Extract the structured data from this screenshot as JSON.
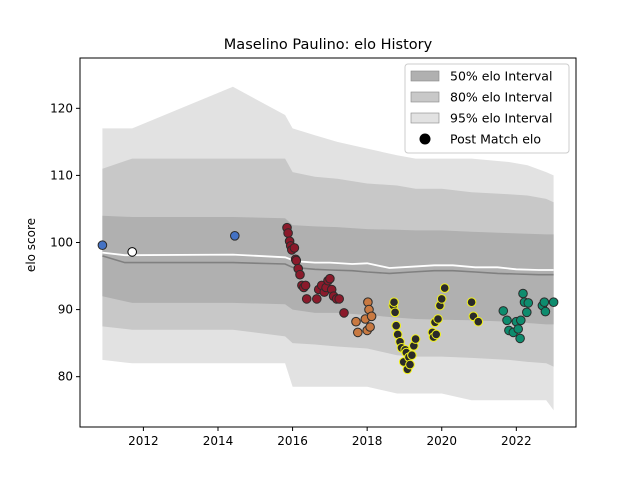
{
  "chart_data": {
    "type": "scatter",
    "title": "Maselino Paulino: elo History",
    "xlabel": "",
    "ylabel": "elo score",
    "xlim": [
      2010.3,
      2023.6
    ],
    "ylim": [
      72.5,
      127.5
    ],
    "xticks": [
      2012,
      2014,
      2016,
      2018,
      2020,
      2022
    ],
    "yticks": [
      80,
      90,
      100,
      110,
      120
    ],
    "grid": false,
    "legend_position": "top-right",
    "legend": [
      {
        "label": "50% elo Interval",
        "kind": "band",
        "color": "#b0b0b0"
      },
      {
        "label": "80% elo Interval",
        "kind": "band",
        "color": "#c8c8c8"
      },
      {
        "label": "95% elo Interval",
        "kind": "band",
        "color": "#e2e2e2"
      },
      {
        "label": "Post Match elo",
        "kind": "marker",
        "color": "#000000"
      }
    ],
    "bands": {
      "x": [
        2010.9,
        2011.7,
        2014.4,
        2015.8,
        2016.0,
        2016.6,
        2017.2,
        2018.0,
        2018.8,
        2019.3,
        2020.0,
        2020.8,
        2021.8,
        2022.3,
        2022.8,
        2023.0
      ],
      "p95_low": [
        82.5,
        82,
        82,
        82,
        78.5,
        78.5,
        78.5,
        78.5,
        77.5,
        77.5,
        77.5,
        76.5,
        76.5,
        76.5,
        76.5,
        75
      ],
      "p95_high": [
        117,
        117,
        123.2,
        119,
        117,
        116,
        115,
        114,
        113,
        112.5,
        112.5,
        112.5,
        112,
        111.5,
        110.5,
        110
      ],
      "p80_low": [
        87.5,
        87,
        87,
        86,
        85,
        84.8,
        84.5,
        84.2,
        83.2,
        83,
        83,
        82.8,
        82.5,
        82.2,
        82,
        81.5
      ],
      "p80_high": [
        111,
        112.5,
        112.5,
        112.5,
        110.5,
        109.8,
        109.5,
        108.8,
        108.5,
        108,
        108,
        107.5,
        107.2,
        107,
        106.5,
        106
      ],
      "p50_low": [
        92,
        91,
        91,
        90.8,
        90,
        89.5,
        89.5,
        89.2,
        88.8,
        88.6,
        88.5,
        88.4,
        88.2,
        88,
        87.8,
        87.8
      ],
      "p50_high": [
        104,
        103.8,
        103.8,
        103.6,
        102.6,
        102.4,
        102.3,
        102,
        101.9,
        101.8,
        101.8,
        101.6,
        101.4,
        101.3,
        101.2,
        101.2
      ]
    },
    "mean_line": {
      "x": [
        2010.9,
        2011.5,
        2014.4,
        2015.8,
        2016.1,
        2016.6,
        2017.0,
        2017.6,
        2018.0,
        2018.6,
        2019.2,
        2019.8,
        2020.3,
        2020.9,
        2021.5,
        2022.0,
        2022.6,
        2023.0
      ],
      "y": [
        98.5,
        98.1,
        98.2,
        97.8,
        97.2,
        97,
        97,
        96.8,
        96.9,
        96.2,
        96.4,
        96.6,
        96.6,
        96.3,
        96.3,
        96.0,
        95.9,
        95.9
      ]
    },
    "median_line": {
      "x": [
        2010.9,
        2011.5,
        2014.4,
        2015.8,
        2016.0,
        2016.6,
        2017.0,
        2017.6,
        2018.0,
        2018.6,
        2019.2,
        2019.8,
        2020.3,
        2020.9,
        2021.5,
        2022.0,
        2022.6,
        2023.0
      ],
      "y": [
        98,
        97,
        97,
        96.8,
        96.3,
        96,
        95.9,
        95.8,
        95.6,
        95.4,
        95.6,
        95.8,
        95.8,
        95.6,
        95.4,
        95.3,
        95.2,
        95.2
      ]
    },
    "series": [
      {
        "color": "#4472c4",
        "edge": "#2b2b2b",
        "points": [
          [
            2010.9,
            99.6
          ],
          [
            2014.45,
            101.0
          ]
        ]
      },
      {
        "color": "#ffffff",
        "edge": "#000000",
        "points": [
          [
            2011.7,
            98.6
          ]
        ]
      },
      {
        "color": "#8b1a2b",
        "edge": "#2b2b2b",
        "points": [
          [
            2015.85,
            102.2
          ],
          [
            2015.88,
            101.4
          ],
          [
            2015.92,
            100.2
          ],
          [
            2015.95,
            99.5
          ],
          [
            2015.98,
            98.9
          ],
          [
            2016.05,
            99.2
          ],
          [
            2016.08,
            97.5
          ],
          [
            2016.1,
            97.3
          ],
          [
            2016.15,
            96.1
          ],
          [
            2016.2,
            95.2
          ],
          [
            2016.25,
            93.6
          ],
          [
            2016.3,
            93.3
          ],
          [
            2016.35,
            93.6
          ],
          [
            2016.38,
            91.6
          ],
          [
            2016.65,
            91.6
          ],
          [
            2016.7,
            93.0
          ],
          [
            2016.78,
            93.6
          ],
          [
            2016.85,
            92.6
          ],
          [
            2016.9,
            93.3
          ],
          [
            2016.95,
            94.3
          ],
          [
            2017.0,
            94.6
          ],
          [
            2017.05,
            93.0
          ],
          [
            2017.1,
            92.0
          ],
          [
            2017.18,
            91.6
          ],
          [
            2017.25,
            91.6
          ],
          [
            2017.38,
            89.5
          ]
        ]
      },
      {
        "color": "#c87941",
        "edge": "#2b2b2b",
        "points": [
          [
            2017.7,
            88.2
          ],
          [
            2017.75,
            86.6
          ],
          [
            2017.95,
            88.6
          ],
          [
            2018.0,
            86.9
          ],
          [
            2018.02,
            91.1
          ],
          [
            2018.05,
            90.0
          ],
          [
            2018.08,
            87.4
          ],
          [
            2018.12,
            89.0
          ]
        ]
      },
      {
        "color": "#2a2a2a",
        "edge": "#f2f21a",
        "points": [
          [
            2018.7,
            90.6
          ],
          [
            2018.72,
            91.1
          ],
          [
            2018.75,
            89.6
          ],
          [
            2018.78,
            87.6
          ],
          [
            2018.82,
            86.3
          ],
          [
            2018.88,
            85.2
          ],
          [
            2018.92,
            84.3
          ],
          [
            2018.98,
            82.2
          ],
          [
            2019.02,
            84.0
          ],
          [
            2019.05,
            83.6
          ],
          [
            2019.08,
            81.1
          ],
          [
            2019.12,
            82.9
          ],
          [
            2019.15,
            81.8
          ],
          [
            2019.2,
            83.2
          ],
          [
            2019.25,
            84.6
          ],
          [
            2019.3,
            85.6
          ],
          [
            2019.75,
            86.6
          ],
          [
            2019.78,
            85.9
          ],
          [
            2019.82,
            88.1
          ],
          [
            2019.85,
            86.3
          ],
          [
            2019.9,
            88.6
          ],
          [
            2019.95,
            90.6
          ],
          [
            2020.0,
            91.6
          ],
          [
            2020.08,
            93.2
          ],
          [
            2020.8,
            91.1
          ],
          [
            2020.85,
            89.0
          ],
          [
            2020.98,
            88.2
          ]
        ]
      },
      {
        "color": "#0e8c6e",
        "edge": "#2b2b2b",
        "points": [
          [
            2021.65,
            89.8
          ],
          [
            2021.75,
            88.4
          ],
          [
            2021.8,
            86.9
          ],
          [
            2021.92,
            86.6
          ],
          [
            2022.0,
            88.2
          ],
          [
            2022.05,
            87.1
          ],
          [
            2022.1,
            85.7
          ],
          [
            2022.12,
            88.4
          ],
          [
            2022.18,
            92.4
          ],
          [
            2022.22,
            91.1
          ],
          [
            2022.28,
            89.6
          ],
          [
            2022.32,
            91.0
          ],
          [
            2022.7,
            90.6
          ],
          [
            2022.75,
            91.1
          ],
          [
            2022.78,
            89.7
          ],
          [
            2023.0,
            91.1
          ]
        ]
      }
    ]
  }
}
